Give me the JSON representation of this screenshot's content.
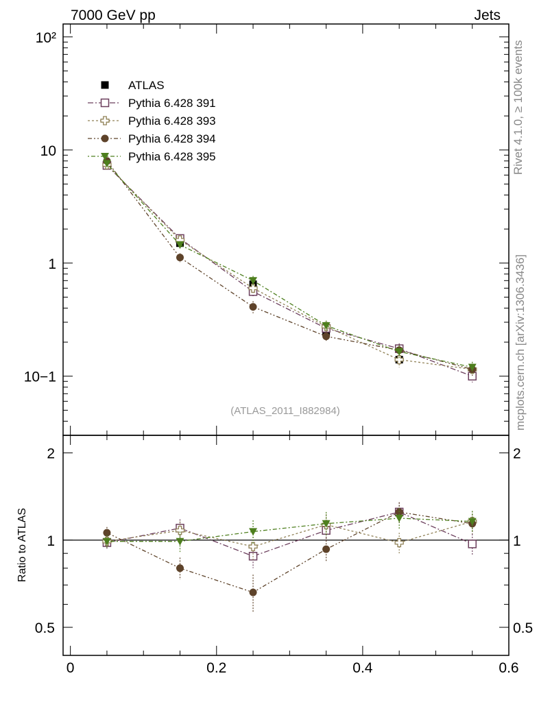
{
  "header": {
    "left": "7000 GeV pp",
    "right": "Jets"
  },
  "side_labels": {
    "rivet": "Rivet 4.1.0, ≥ 100k events",
    "mcplots": "mcplots.cern.ch [arXiv:1306.3436]"
  },
  "watermark": "(ATLAS_2011_I882984)",
  "colors": {
    "ATLAS": "#000000",
    "p391": "#6b3e5c",
    "p393": "#8f8055",
    "p394": "#5e432a",
    "p395": "#4e7f1e"
  },
  "chart_data": [
    {
      "type": "line",
      "panel": "main",
      "yscale": "log",
      "xlim": [
        -0.01,
        0.6
      ],
      "ylim": [
        0.03,
        130
      ],
      "x": [
        0.05,
        0.15,
        0.25,
        0.35,
        0.45,
        0.55
      ],
      "ytick_labels": [
        "10−1",
        "1",
        "10",
        "10²"
      ],
      "series": [
        {
          "name": "ATLAS",
          "marker": "filled-square",
          "values": [
            7.5,
            1.5,
            0.65,
            0.245,
            0.14,
            0.1
          ],
          "errors": [
            0.3,
            0.08,
            0.04,
            0.015,
            0.01,
            0.008
          ]
        },
        {
          "name": "Pythia 6.428 391",
          "marker": "open-square",
          "values": [
            7.3,
            1.65,
            0.56,
            0.265,
            0.175,
            0.1
          ],
          "errors": [
            0.4,
            0.12,
            0.05,
            0.025,
            0.02,
            0.012
          ]
        },
        {
          "name": "Pythia 6.428 393",
          "marker": "open-cross",
          "values": [
            7.4,
            1.6,
            0.6,
            0.275,
            0.14,
            0.115
          ],
          "errors": [
            0.4,
            0.12,
            0.06,
            0.025,
            0.02,
            0.014
          ]
        },
        {
          "name": "Pythia 6.428 394",
          "marker": "filled-circle",
          "values": [
            8.0,
            1.12,
            0.41,
            0.225,
            0.17,
            0.115
          ],
          "errors": [
            0.4,
            0.1,
            0.05,
            0.025,
            0.02,
            0.014
          ]
        },
        {
          "name": "Pythia 6.428 395",
          "marker": "filled-triangle-down",
          "values": [
            7.6,
            1.45,
            0.7,
            0.28,
            0.165,
            0.12
          ],
          "errors": [
            0.4,
            0.12,
            0.07,
            0.03,
            0.02,
            0.014
          ]
        }
      ]
    },
    {
      "type": "line",
      "panel": "ratio",
      "yscale": "log",
      "ylabel": "Ratio to ATLAS",
      "xlim": [
        -0.01,
        0.6
      ],
      "ylim": [
        0.4,
        2.3
      ],
      "reference_line": 1,
      "x": [
        0.05,
        0.15,
        0.25,
        0.35,
        0.45,
        0.55
      ],
      "xtick_labels": [
        "0",
        "0.2",
        "0.4",
        "0.6"
      ],
      "ytick_labels": [
        "0.5",
        "1",
        "2"
      ],
      "series": [
        {
          "name": "Pythia 6.428 391",
          "values": [
            0.98,
            1.1,
            0.88,
            1.08,
            1.25,
            0.97
          ],
          "errors": [
            0.05,
            0.08,
            0.08,
            0.09,
            0.1,
            0.08
          ]
        },
        {
          "name": "Pythia 6.428 393",
          "values": [
            0.99,
            1.08,
            0.95,
            1.13,
            0.98,
            1.16
          ],
          "errors": [
            0.05,
            0.08,
            0.1,
            0.1,
            0.08,
            0.1
          ]
        },
        {
          "name": "Pythia 6.428 394",
          "values": [
            1.06,
            0.8,
            0.66,
            0.93,
            1.25,
            1.14
          ],
          "errors": [
            0.05,
            0.07,
            0.1,
            0.09,
            0.1,
            0.09
          ]
        },
        {
          "name": "Pythia 6.428 395",
          "values": [
            0.99,
            0.99,
            1.07,
            1.14,
            1.19,
            1.16
          ],
          "errors": [
            0.05,
            0.08,
            0.1,
            0.11,
            0.1,
            0.1
          ]
        }
      ]
    }
  ]
}
